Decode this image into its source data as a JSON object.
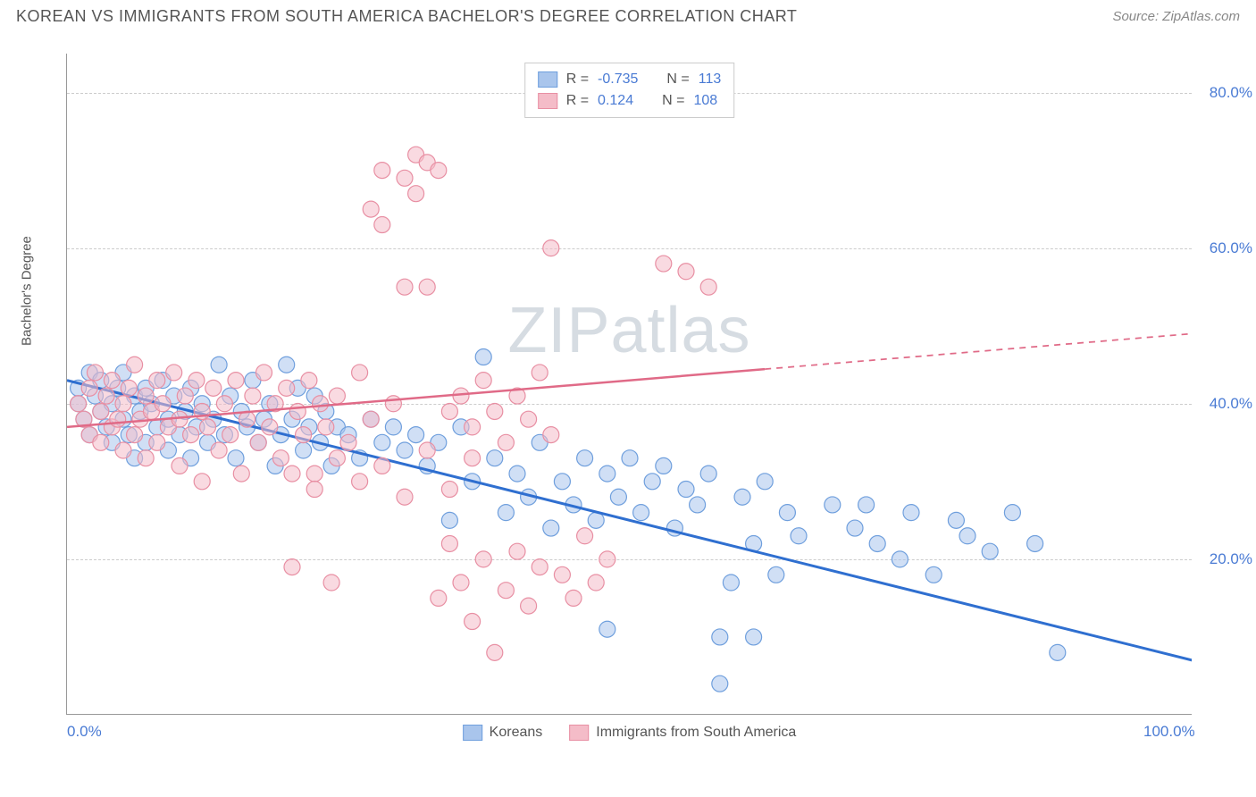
{
  "title": "KOREAN VS IMMIGRANTS FROM SOUTH AMERICA BACHELOR'S DEGREE CORRELATION CHART",
  "source": "Source: ZipAtlas.com",
  "watermark": "ZIPatlas",
  "ylabel": "Bachelor's Degree",
  "chart": {
    "type": "scatter",
    "xlim": [
      0,
      100
    ],
    "ylim": [
      0,
      85
    ],
    "x_ticks": [
      {
        "value": 0,
        "label": "0.0%"
      },
      {
        "value": 100,
        "label": "100.0%"
      }
    ],
    "y_ticks": [
      {
        "value": 20,
        "label": "20.0%"
      },
      {
        "value": 40,
        "label": "40.0%"
      },
      {
        "value": 60,
        "label": "60.0%"
      },
      {
        "value": 80,
        "label": "80.0%"
      }
    ],
    "background_color": "#ffffff",
    "grid_color": "#cccccc",
    "axis_color": "#999999",
    "tick_label_color": "#4a7bd4",
    "series": [
      {
        "name": "Koreans",
        "marker_fill": "#a9c5ec",
        "marker_stroke": "#6f9fdd",
        "marker_fill_opacity": 0.55,
        "marker_radius": 9,
        "line_color": "#2f6fd0",
        "line_width": 3,
        "trendline": {
          "x1": 0,
          "y1": 43,
          "x2": 100,
          "y2": 7,
          "solid_until_x": 100
        },
        "R": "-0.735",
        "N": "113",
        "points": [
          [
            1,
            42
          ],
          [
            1,
            40
          ],
          [
            1.5,
            38
          ],
          [
            2,
            36
          ],
          [
            2,
            44
          ],
          [
            2.5,
            41
          ],
          [
            3,
            39
          ],
          [
            3,
            43
          ],
          [
            3.5,
            37
          ],
          [
            4,
            40
          ],
          [
            4,
            35
          ],
          [
            4.5,
            42
          ],
          [
            5,
            38
          ],
          [
            5,
            44
          ],
          [
            5.5,
            36
          ],
          [
            6,
            41
          ],
          [
            6,
            33
          ],
          [
            6.5,
            39
          ],
          [
            7,
            42
          ],
          [
            7,
            35
          ],
          [
            7.5,
            40
          ],
          [
            8,
            37
          ],
          [
            8.5,
            43
          ],
          [
            9,
            38
          ],
          [
            9,
            34
          ],
          [
            9.5,
            41
          ],
          [
            10,
            36
          ],
          [
            10.5,
            39
          ],
          [
            11,
            42
          ],
          [
            11,
            33
          ],
          [
            11.5,
            37
          ],
          [
            12,
            40
          ],
          [
            12.5,
            35
          ],
          [
            13,
            38
          ],
          [
            13.5,
            45
          ],
          [
            14,
            36
          ],
          [
            14.5,
            41
          ],
          [
            15,
            33
          ],
          [
            15.5,
            39
          ],
          [
            16,
            37
          ],
          [
            16.5,
            43
          ],
          [
            17,
            35
          ],
          [
            17.5,
            38
          ],
          [
            18,
            40
          ],
          [
            18.5,
            32
          ],
          [
            19,
            36
          ],
          [
            19.5,
            45
          ],
          [
            20,
            38
          ],
          [
            20.5,
            42
          ],
          [
            21,
            34
          ],
          [
            21.5,
            37
          ],
          [
            22,
            41
          ],
          [
            22.5,
            35
          ],
          [
            23,
            39
          ],
          [
            23.5,
            32
          ],
          [
            24,
            37
          ],
          [
            25,
            36
          ],
          [
            26,
            33
          ],
          [
            27,
            38
          ],
          [
            28,
            35
          ],
          [
            29,
            37
          ],
          [
            30,
            34
          ],
          [
            31,
            36
          ],
          [
            32,
            32
          ],
          [
            33,
            35
          ],
          [
            34,
            25
          ],
          [
            35,
            37
          ],
          [
            36,
            30
          ],
          [
            37,
            46
          ],
          [
            38,
            33
          ],
          [
            39,
            26
          ],
          [
            40,
            31
          ],
          [
            41,
            28
          ],
          [
            42,
            35
          ],
          [
            43,
            24
          ],
          [
            44,
            30
          ],
          [
            45,
            27
          ],
          [
            46,
            33
          ],
          [
            47,
            25
          ],
          [
            48,
            31
          ],
          [
            49,
            28
          ],
          [
            50,
            33
          ],
          [
            51,
            26
          ],
          [
            52,
            30
          ],
          [
            53,
            32
          ],
          [
            54,
            24
          ],
          [
            55,
            29
          ],
          [
            56,
            27
          ],
          [
            57,
            31
          ],
          [
            58,
            10
          ],
          [
            59,
            17
          ],
          [
            60,
            28
          ],
          [
            61,
            22
          ],
          [
            62,
            30
          ],
          [
            63,
            18
          ],
          [
            64,
            26
          ],
          [
            65,
            23
          ],
          [
            58,
            4
          ],
          [
            68,
            27
          ],
          [
            70,
            24
          ],
          [
            72,
            22
          ],
          [
            74,
            20
          ],
          [
            75,
            26
          ],
          [
            77,
            18
          ],
          [
            79,
            25
          ],
          [
            80,
            23
          ],
          [
            82,
            21
          ],
          [
            84,
            26
          ],
          [
            86,
            22
          ],
          [
            88,
            8
          ],
          [
            71,
            27
          ],
          [
            48,
            11
          ],
          [
            61,
            10
          ]
        ]
      },
      {
        "name": "Immigrants from South America",
        "marker_fill": "#f4bcc8",
        "marker_stroke": "#e88fa3",
        "marker_fill_opacity": 0.55,
        "marker_radius": 9,
        "line_color": "#e06a87",
        "line_width": 2.5,
        "trendline": {
          "x1": 0,
          "y1": 37,
          "x2": 100,
          "y2": 49,
          "solid_until_x": 62
        },
        "R": "0.124",
        "N": "108",
        "points": [
          [
            1,
            40
          ],
          [
            1.5,
            38
          ],
          [
            2,
            42
          ],
          [
            2,
            36
          ],
          [
            2.5,
            44
          ],
          [
            3,
            39
          ],
          [
            3,
            35
          ],
          [
            3.5,
            41
          ],
          [
            4,
            37
          ],
          [
            4,
            43
          ],
          [
            4.5,
            38
          ],
          [
            5,
            40
          ],
          [
            5,
            34
          ],
          [
            5.5,
            42
          ],
          [
            6,
            36
          ],
          [
            6,
            45
          ],
          [
            6.5,
            38
          ],
          [
            7,
            41
          ],
          [
            7,
            33
          ],
          [
            7.5,
            39
          ],
          [
            8,
            43
          ],
          [
            8,
            35
          ],
          [
            8.5,
            40
          ],
          [
            9,
            37
          ],
          [
            9.5,
            44
          ],
          [
            10,
            38
          ],
          [
            10,
            32
          ],
          [
            10.5,
            41
          ],
          [
            11,
            36
          ],
          [
            11.5,
            43
          ],
          [
            12,
            39
          ],
          [
            12,
            30
          ],
          [
            12.5,
            37
          ],
          [
            13,
            42
          ],
          [
            13.5,
            34
          ],
          [
            14,
            40
          ],
          [
            14.5,
            36
          ],
          [
            15,
            43
          ],
          [
            15.5,
            31
          ],
          [
            16,
            38
          ],
          [
            16.5,
            41
          ],
          [
            17,
            35
          ],
          [
            17.5,
            44
          ],
          [
            18,
            37
          ],
          [
            18.5,
            40
          ],
          [
            19,
            33
          ],
          [
            19.5,
            42
          ],
          [
            20,
            19
          ],
          [
            20.5,
            39
          ],
          [
            21,
            36
          ],
          [
            21.5,
            43
          ],
          [
            22,
            31
          ],
          [
            22.5,
            40
          ],
          [
            23,
            37
          ],
          [
            23.5,
            17
          ],
          [
            24,
            41
          ],
          [
            25,
            35
          ],
          [
            26,
            44
          ],
          [
            27,
            38
          ],
          [
            28,
            70
          ],
          [
            29,
            40
          ],
          [
            30,
            69
          ],
          [
            31,
            72
          ],
          [
            32,
            71
          ],
          [
            33,
            70
          ],
          [
            34,
            39
          ],
          [
            30,
            55
          ],
          [
            27,
            65
          ],
          [
            28,
            63
          ],
          [
            31,
            67
          ],
          [
            35,
            41
          ],
          [
            36,
            37
          ],
          [
            37,
            43
          ],
          [
            38,
            39
          ],
          [
            39,
            35
          ],
          [
            40,
            41
          ],
          [
            41,
            38
          ],
          [
            42,
            44
          ],
          [
            43,
            36
          ],
          [
            32,
            55
          ],
          [
            33,
            15
          ],
          [
            34,
            22
          ],
          [
            35,
            17
          ],
          [
            36,
            12
          ],
          [
            37,
            20
          ],
          [
            38,
            8
          ],
          [
            39,
            16
          ],
          [
            40,
            21
          ],
          [
            41,
            14
          ],
          [
            42,
            19
          ],
          [
            43,
            60
          ],
          [
            44,
            18
          ],
          [
            45,
            15
          ],
          [
            46,
            23
          ],
          [
            47,
            17
          ],
          [
            48,
            20
          ],
          [
            53,
            58
          ],
          [
            55,
            57
          ],
          [
            57,
            55
          ],
          [
            20,
            31
          ],
          [
            22,
            29
          ],
          [
            24,
            33
          ],
          [
            26,
            30
          ],
          [
            28,
            32
          ],
          [
            30,
            28
          ],
          [
            32,
            34
          ],
          [
            34,
            29
          ],
          [
            36,
            33
          ]
        ]
      }
    ]
  },
  "legend_top": {
    "r_label": "R =",
    "n_label": "N ="
  },
  "legend_bottom": [
    {
      "swatch_fill": "#a9c5ec",
      "swatch_stroke": "#6f9fdd",
      "label": "Koreans"
    },
    {
      "swatch_fill": "#f4bcc8",
      "swatch_stroke": "#e88fa3",
      "label": "Immigrants from South America"
    }
  ]
}
